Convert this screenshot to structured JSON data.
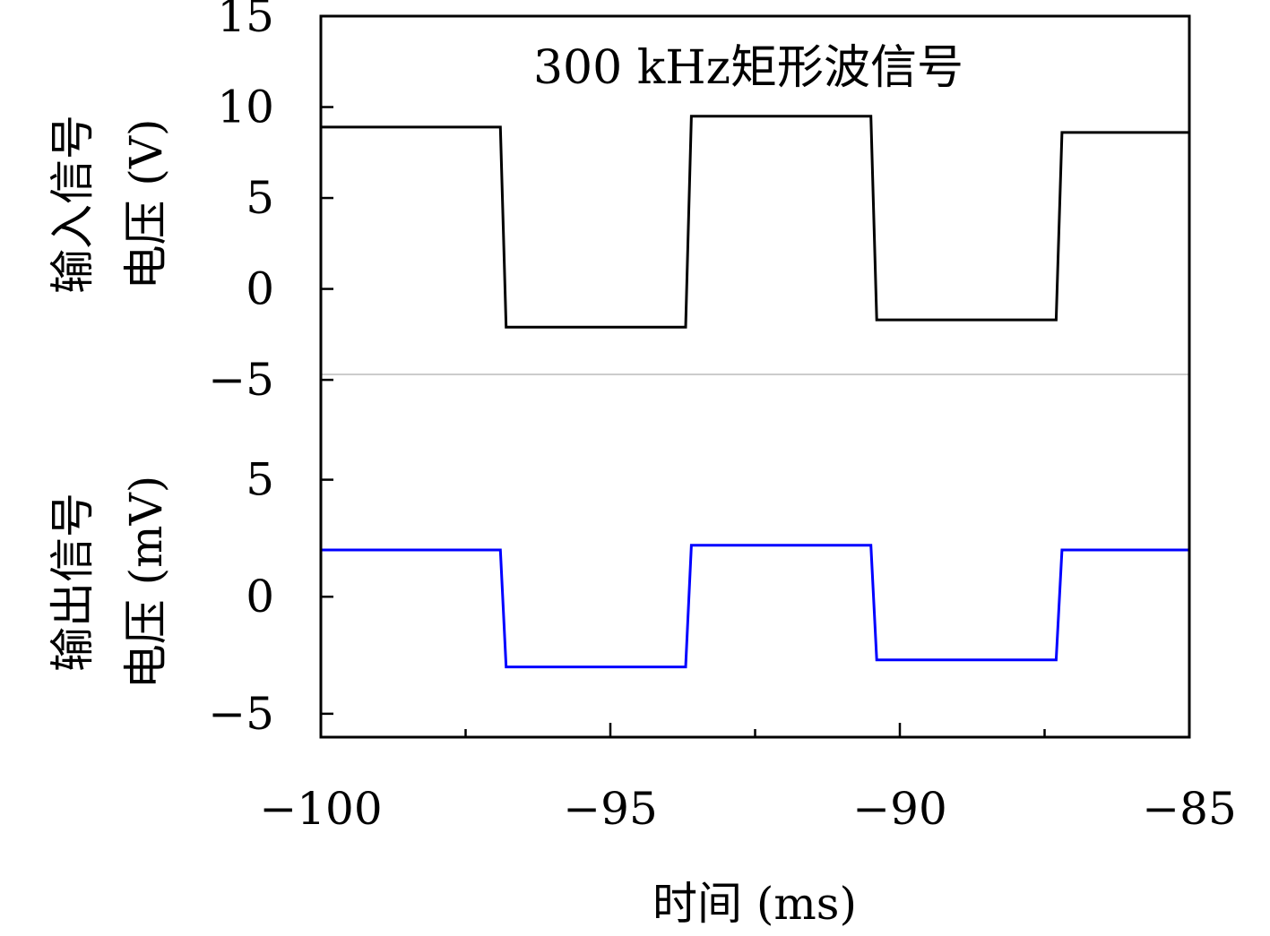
{
  "chart_data": {
    "type": "line",
    "annotation": "300 kHz矩形波信号",
    "xlabel": "时间 (ms)",
    "xlim": [
      -100,
      -85
    ],
    "xticks": [
      {
        "value": -100,
        "label": "−100"
      },
      {
        "value": -95,
        "label": "−95"
      },
      {
        "value": -90,
        "label": "−90"
      },
      {
        "value": -85,
        "label": "−85"
      }
    ],
    "x_minor_ticks": [
      -97.5,
      -92.5,
      -87.5
    ],
    "panels": [
      {
        "ylabel_line1": "输入信号",
        "ylabel_line2": "电压 (V)",
        "ylim": [
          -4.7,
          15
        ],
        "yticks": [
          {
            "value": 15,
            "label": "15"
          },
          {
            "value": 10,
            "label": "10"
          },
          {
            "value": 5,
            "label": "5"
          },
          {
            "value": 0,
            "label": "0"
          },
          {
            "value": -5,
            "label": "−5"
          }
        ],
        "series": [
          {
            "color": "#000000",
            "x": [
              -100,
              -96.9,
              -96.8,
              -93.7,
              -93.6,
              -90.5,
              -90.4,
              -87.3,
              -87.2,
              -85
            ],
            "y": [
              8.9,
              8.9,
              -2.1,
              -2.1,
              9.5,
              9.5,
              -1.7,
              -1.7,
              8.6,
              8.6
            ]
          }
        ]
      },
      {
        "ylabel_line1": "输出信号",
        "ylabel_line2": "电压 (mV)",
        "ylim": [
          -6,
          9.5
        ],
        "yticks": [
          {
            "value": 5,
            "label": "5"
          },
          {
            "value": 0,
            "label": "0"
          },
          {
            "value": -5,
            "label": "−5"
          }
        ],
        "series": [
          {
            "color": "#0000ff",
            "x": [
              -100,
              -96.9,
              -96.8,
              -93.7,
              -93.6,
              -90.5,
              -90.4,
              -87.3,
              -87.2,
              -85
            ],
            "y": [
              2.0,
              2.0,
              -3.0,
              -3.0,
              2.2,
              2.2,
              -2.7,
              -2.7,
              2.0,
              2.0
            ]
          }
        ]
      }
    ],
    "separator_color": "#cccccc",
    "grid": false
  }
}
